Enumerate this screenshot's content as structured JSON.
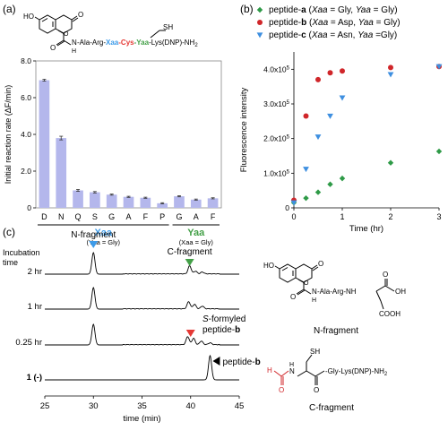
{
  "panel_labels": {
    "a": "(a)",
    "b": "(b)",
    "c": "(c)"
  },
  "peptide_formula": {
    "ho": "HO",
    "o1": "O",
    "o2": "O",
    "o3": "O",
    "nh": "N",
    "h": "H",
    "sh": "SH",
    "seq_pre": "-Ala-Arg-",
    "xaa": "Xaa",
    "dash1": "-",
    "cys": "Cys",
    "dash2": "-",
    "yaa": "Yaa",
    "seq_post": "-Lys(DNP)-NH",
    "sub2": "2"
  },
  "n_fragment_structure": {
    "ho": "HO",
    "o1": "O",
    "o2": "O",
    "o3": "O",
    "o4": "O",
    "nh": "N",
    "h": "H",
    "seq": "-Ala-Arg-NH",
    "oh": "OH",
    "cooh": "COOH",
    "label": "N-fragment"
  },
  "c_fragment_structure": {
    "sh": "SH",
    "o1": "O",
    "o2": "O",
    "h": "H",
    "n1": "N",
    "h1": "H",
    "seq": "-Gly-Lys(DNP)-NH",
    "sub2": "2",
    "label": "C-fragment"
  },
  "colors": {
    "bar": "#b4b7ec",
    "xaa": "#3d9be9",
    "cys": "#e53935",
    "yaa": "#43a047",
    "series_a": "#2e9a47",
    "series_b": "#d0262a",
    "series_c": "#3e8fe0",
    "trace": "#000000"
  },
  "chart_data": [
    {
      "type": "bar",
      "ylabel": "Initial reaction rate (ΔF/min)",
      "ylim": [
        0,
        8
      ],
      "yticks": [
        "0",
        "2.0",
        "4.0",
        "6.0",
        "8.0"
      ],
      "categories": [
        "D",
        "N",
        "Q",
        "S",
        "G",
        "A",
        "F",
        "P",
        "G",
        "A",
        "F"
      ],
      "values": [
        6.95,
        3.8,
        0.95,
        0.85,
        0.72,
        0.6,
        0.55,
        0.25,
        0.63,
        0.45,
        0.52
      ],
      "errors": [
        0.05,
        0.1,
        0.05,
        0.04,
        0.03,
        0.03,
        0.03,
        0.03,
        0.03,
        0.03,
        0.03
      ],
      "groups": [
        {
          "label": "Xaa",
          "sub": "(Yaa = Gly)",
          "from": 0,
          "to": 7
        },
        {
          "label": "Yaa",
          "sub": "(Xaa = Gly)",
          "from": 8,
          "to": 10
        }
      ]
    },
    {
      "type": "scatter",
      "ylabel": "Fluorescence intensity",
      "xlabel": "Time (hr)",
      "xlim": [
        0,
        3
      ],
      "ylim": [
        0,
        450000
      ],
      "xticks": [
        "0",
        "1",
        "2",
        "3"
      ],
      "yticks": [
        {
          "mant": "0",
          "exp": ""
        },
        {
          "mant": "1.0x10",
          "exp": "5"
        },
        {
          "mant": "2.0x10",
          "exp": "5"
        },
        {
          "mant": "3.0x10",
          "exp": "5"
        },
        {
          "mant": "4.0x10",
          "exp": "5"
        }
      ],
      "legend_position": "top",
      "series": [
        {
          "name": {
            "p1": "peptide-",
            "p2": "a",
            "p3": " (",
            "p4": "Xaa",
            "p5": " = Gly, ",
            "p6": "Yaa",
            "p7": " = Gly)"
          },
          "marker": "diamond",
          "x": [
            0,
            0.25,
            0.5,
            0.75,
            1,
            2,
            3
          ],
          "y": [
            15000,
            28000,
            45000,
            68000,
            85000,
            130000,
            163000
          ]
        },
        {
          "name": {
            "p1": "peptide-",
            "p2": "b",
            "p3": " (",
            "p4": "Xaa",
            "p5": " = Asp, ",
            "p6": "Yaa",
            "p7": " = Gly)"
          },
          "marker": "circle",
          "x": [
            0,
            0.25,
            0.5,
            0.75,
            1,
            2,
            3
          ],
          "y": [
            22000,
            265000,
            370000,
            390000,
            395000,
            405000,
            408000
          ]
        },
        {
          "name": {
            "p1": "peptide-",
            "p2": "c",
            "p3": " (",
            "p4": "Xaa",
            "p5": " = Asn, ",
            "p6": "Yaa",
            "p7": " =Gly)"
          },
          "marker": "triangle-down",
          "x": [
            0,
            0.25,
            0.5,
            0.75,
            1,
            2,
            3
          ],
          "y": [
            15000,
            112000,
            205000,
            265000,
            318000,
            385000,
            408000
          ]
        }
      ]
    },
    {
      "type": "line",
      "xlabel": "time (min)",
      "xlim": [
        25,
        45
      ],
      "xticks": [
        "25",
        "30",
        "35",
        "40",
        "45"
      ],
      "row_header": [
        "Incubation",
        "time"
      ],
      "traces": [
        {
          "label": "2 hr",
          "peaks": [
            {
              "x": 30.0,
              "h": 24
            },
            {
              "x": 39.9,
              "h": 9
            },
            {
              "x": 40.5,
              "h": 3
            },
            {
              "x": 41.2,
              "h": 2
            }
          ]
        },
        {
          "label": "1 hr",
          "peaks": [
            {
              "x": 30.0,
              "h": 24
            },
            {
              "x": 39.8,
              "h": 8
            },
            {
              "x": 40.4,
              "h": 5
            },
            {
              "x": 41.2,
              "h": 3
            }
          ]
        },
        {
          "label": "0.25 hr",
          "peaks": [
            {
              "x": 30.0,
              "h": 23
            },
            {
              "x": 39.7,
              "h": 9
            },
            {
              "x": 40.3,
              "h": 7
            },
            {
              "x": 41.1,
              "h": 4
            },
            {
              "x": 42.0,
              "h": 2
            }
          ]
        },
        {
          "label": "1 (-)",
          "peaks": [
            {
              "x": 42.0,
              "h": 27
            }
          ]
        }
      ],
      "annotations": {
        "n_fragment": "N-fragment",
        "c_fragment": "C-fragment",
        "s_formyled_1": "S",
        "s_formyled_2": "-formyled",
        "s_formyled_3": "peptide-",
        "s_formyled_4": "b",
        "peptide_b_1": "peptide-",
        "peptide_b_2": "b"
      }
    }
  ]
}
